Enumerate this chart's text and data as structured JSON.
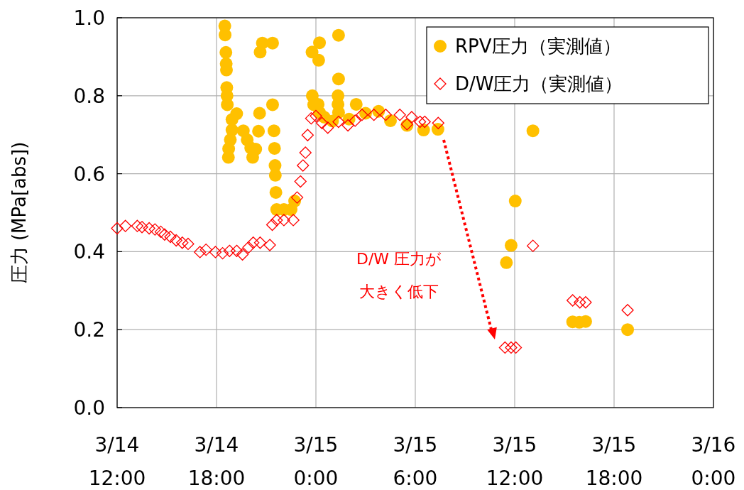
{
  "chart_data": {
    "type": "scatter",
    "ylabel": "圧力 (MPa[abs])",
    "xlim": [
      "--03-14T12:00",
      "--03-16T00:00"
    ],
    "ylim": [
      0,
      1
    ],
    "xticks": [
      {
        "value": "--03-14T12:00",
        "label": "3/14\n12:00"
      },
      {
        "value": "--03-14T18:00",
        "label": "3/14\n18:00"
      },
      {
        "value": "--03-15T00:00",
        "label": "3/15\n0:00"
      },
      {
        "value": "--03-15T06:00",
        "label": "3/15\n6:00"
      },
      {
        "value": "--03-15T12:00",
        "label": "3/15\n12:00"
      },
      {
        "value": "--03-15T18:00",
        "label": "3/15\n18:00"
      },
      {
        "value": "--03-16T00:00",
        "label": "3/16\n0:00"
      }
    ],
    "yticks": [
      {
        "value": 0,
        "label": "0.0"
      },
      {
        "value": 0.2,
        "label": "0.2"
      },
      {
        "value": 0.4,
        "label": "0.4"
      },
      {
        "value": 0.6,
        "label": "0.6"
      },
      {
        "value": 0.8,
        "label": "0.8"
      },
      {
        "value": 1,
        "label": "1.0"
      }
    ],
    "grid": true,
    "legend": "top right",
    "series": [
      {
        "name": "RPV圧力（実測値）",
        "color": "#ffc000",
        "marker": "circle",
        "x": [
          "--03-14T18:30",
          "--03-14T18:31",
          "--03-14T18:34",
          "--03-14T18:35",
          "--03-14T18:36",
          "--03-14T18:37",
          "--03-14T18:38",
          "--03-14T18:39",
          "--03-14T19:13",
          "--03-14T18:56",
          "--03-14T18:56",
          "--03-14T18:50",
          "--03-14T18:44",
          "--03-14T18:43",
          "--03-14T19:37",
          "--03-14T19:51",
          "--03-14T20:04",
          "--03-14T20:11",
          "--03-14T20:22",
          "--03-14T20:32",
          "--03-14T20:36",
          "--03-14T20:38",
          "--03-14T20:46",
          "--03-14T21:23",
          "--03-14T21:23",
          "--03-14T21:28",
          "--03-14T21:30",
          "--03-14T21:32",
          "--03-14T21:33",
          "--03-14T21:35",
          "--03-14T21:38",
          "--03-14T22:04",
          "--03-14T22:30",
          "--03-14T22:43",
          "--03-14T23:46",
          "--03-15T00:13",
          "--03-15T00:10",
          "--03-14T23:47",
          "--03-14T23:52",
          "--03-15T00:08",
          "--03-15T00:13",
          "--03-15T00:30",
          "--03-15T01:00",
          "--03-15T01:20",
          "--03-15T01:20",
          "--03-15T01:22",
          "--03-15T01:22",
          "--03-15T01:22",
          "--03-15T02:00",
          "--03-15T02:26",
          "--03-15T03:00",
          "--03-15T03:47",
          "--03-15T04:30",
          "--03-15T05:30",
          "--03-15T06:30",
          "--03-15T07:22",
          "--03-15T11:30",
          "--03-15T11:47",
          "--03-15T12:02",
          "--03-15T13:06",
          "--03-15T15:30",
          "--03-15T15:54",
          "--03-15T16:17",
          "--03-15T18:49"
        ],
        "values": [
          0.979,
          0.956,
          0.911,
          0.882,
          0.866,
          0.821,
          0.8,
          0.777,
          0.754,
          0.739,
          0.712,
          0.687,
          0.664,
          0.642,
          0.71,
          0.687,
          0.666,
          0.642,
          0.663,
          0.709,
          0.755,
          0.912,
          0.935,
          0.935,
          0.777,
          0.71,
          0.665,
          0.621,
          0.596,
          0.552,
          0.508,
          0.508,
          0.508,
          0.53,
          0.912,
          0.936,
          0.891,
          0.8,
          0.777,
          0.778,
          0.757,
          0.745,
          0.735,
          0.8,
          0.778,
          0.955,
          0.843,
          0.757,
          0.74,
          0.778,
          0.755,
          0.76,
          0.736,
          0.724,
          0.712,
          0.714,
          0.372,
          0.416,
          0.53,
          0.71,
          0.22,
          0.219,
          0.221,
          0.2
        ]
      },
      {
        "name": "D/W圧力（実測値）",
        "color": "#ff0000",
        "marker": "diamond",
        "x": [
          "--03-14T12:00",
          "--03-14T12:30",
          "--03-14T13:13",
          "--03-14T13:30",
          "--03-14T13:56",
          "--03-14T14:17",
          "--03-14T14:38",
          "--03-14T14:52",
          "--03-14T15:13",
          "--03-14T15:34",
          "--03-14T15:56",
          "--03-14T16:17",
          "--03-14T17:00",
          "--03-14T17:22",
          "--03-14T17:56",
          "--03-14T18:22",
          "--03-14T18:47",
          "--03-14T19:13",
          "--03-14T19:34",
          "--03-14T19:56",
          "--03-14T20:13",
          "--03-14T20:38",
          "--03-14T21:13",
          "--03-14T21:22",
          "--03-14T21:38",
          "--03-14T22:04",
          "--03-14T22:38",
          "--03-14T22:52",
          "--03-14T23:04",
          "--03-14T23:13",
          "--03-14T23:22",
          "--03-14T23:30",
          "--03-14T23:43",
          "--03-15T00:00",
          "--03-15T00:22",
          "--03-15T00:43",
          "--03-15T01:22",
          "--03-15T01:56",
          "--03-15T02:22",
          "--03-15T02:47",
          "--03-15T03:30",
          "--03-15T04:13",
          "--03-15T05:04",
          "--03-15T05:30",
          "--03-15T05:47",
          "--03-15T06:17",
          "--03-15T06:34",
          "--03-15T07:23",
          "--03-15T11:25",
          "--03-15T11:47",
          "--03-15T12:04",
          "--03-15T13:06",
          "--03-15T15:30",
          "--03-15T15:56",
          "--03-15T16:17",
          "--03-15T18:49"
        ],
        "values": [
          0.46,
          0.466,
          0.466,
          0.463,
          0.46,
          0.457,
          0.451,
          0.444,
          0.438,
          0.429,
          0.423,
          0.42,
          0.399,
          0.405,
          0.399,
          0.396,
          0.402,
          0.402,
          0.393,
          0.411,
          0.423,
          0.423,
          0.417,
          0.469,
          0.481,
          0.481,
          0.481,
          0.539,
          0.58,
          0.621,
          0.654,
          0.699,
          0.742,
          0.748,
          0.73,
          0.718,
          0.733,
          0.724,
          0.736,
          0.751,
          0.751,
          0.751,
          0.751,
          0.727,
          0.745,
          0.733,
          0.733,
          0.73,
          0.154,
          0.154,
          0.154,
          0.415,
          0.275,
          0.27,
          0.27,
          0.25
        ]
      }
    ],
    "annotations": [
      "D/W 圧力が大きく低下"
    ]
  }
}
